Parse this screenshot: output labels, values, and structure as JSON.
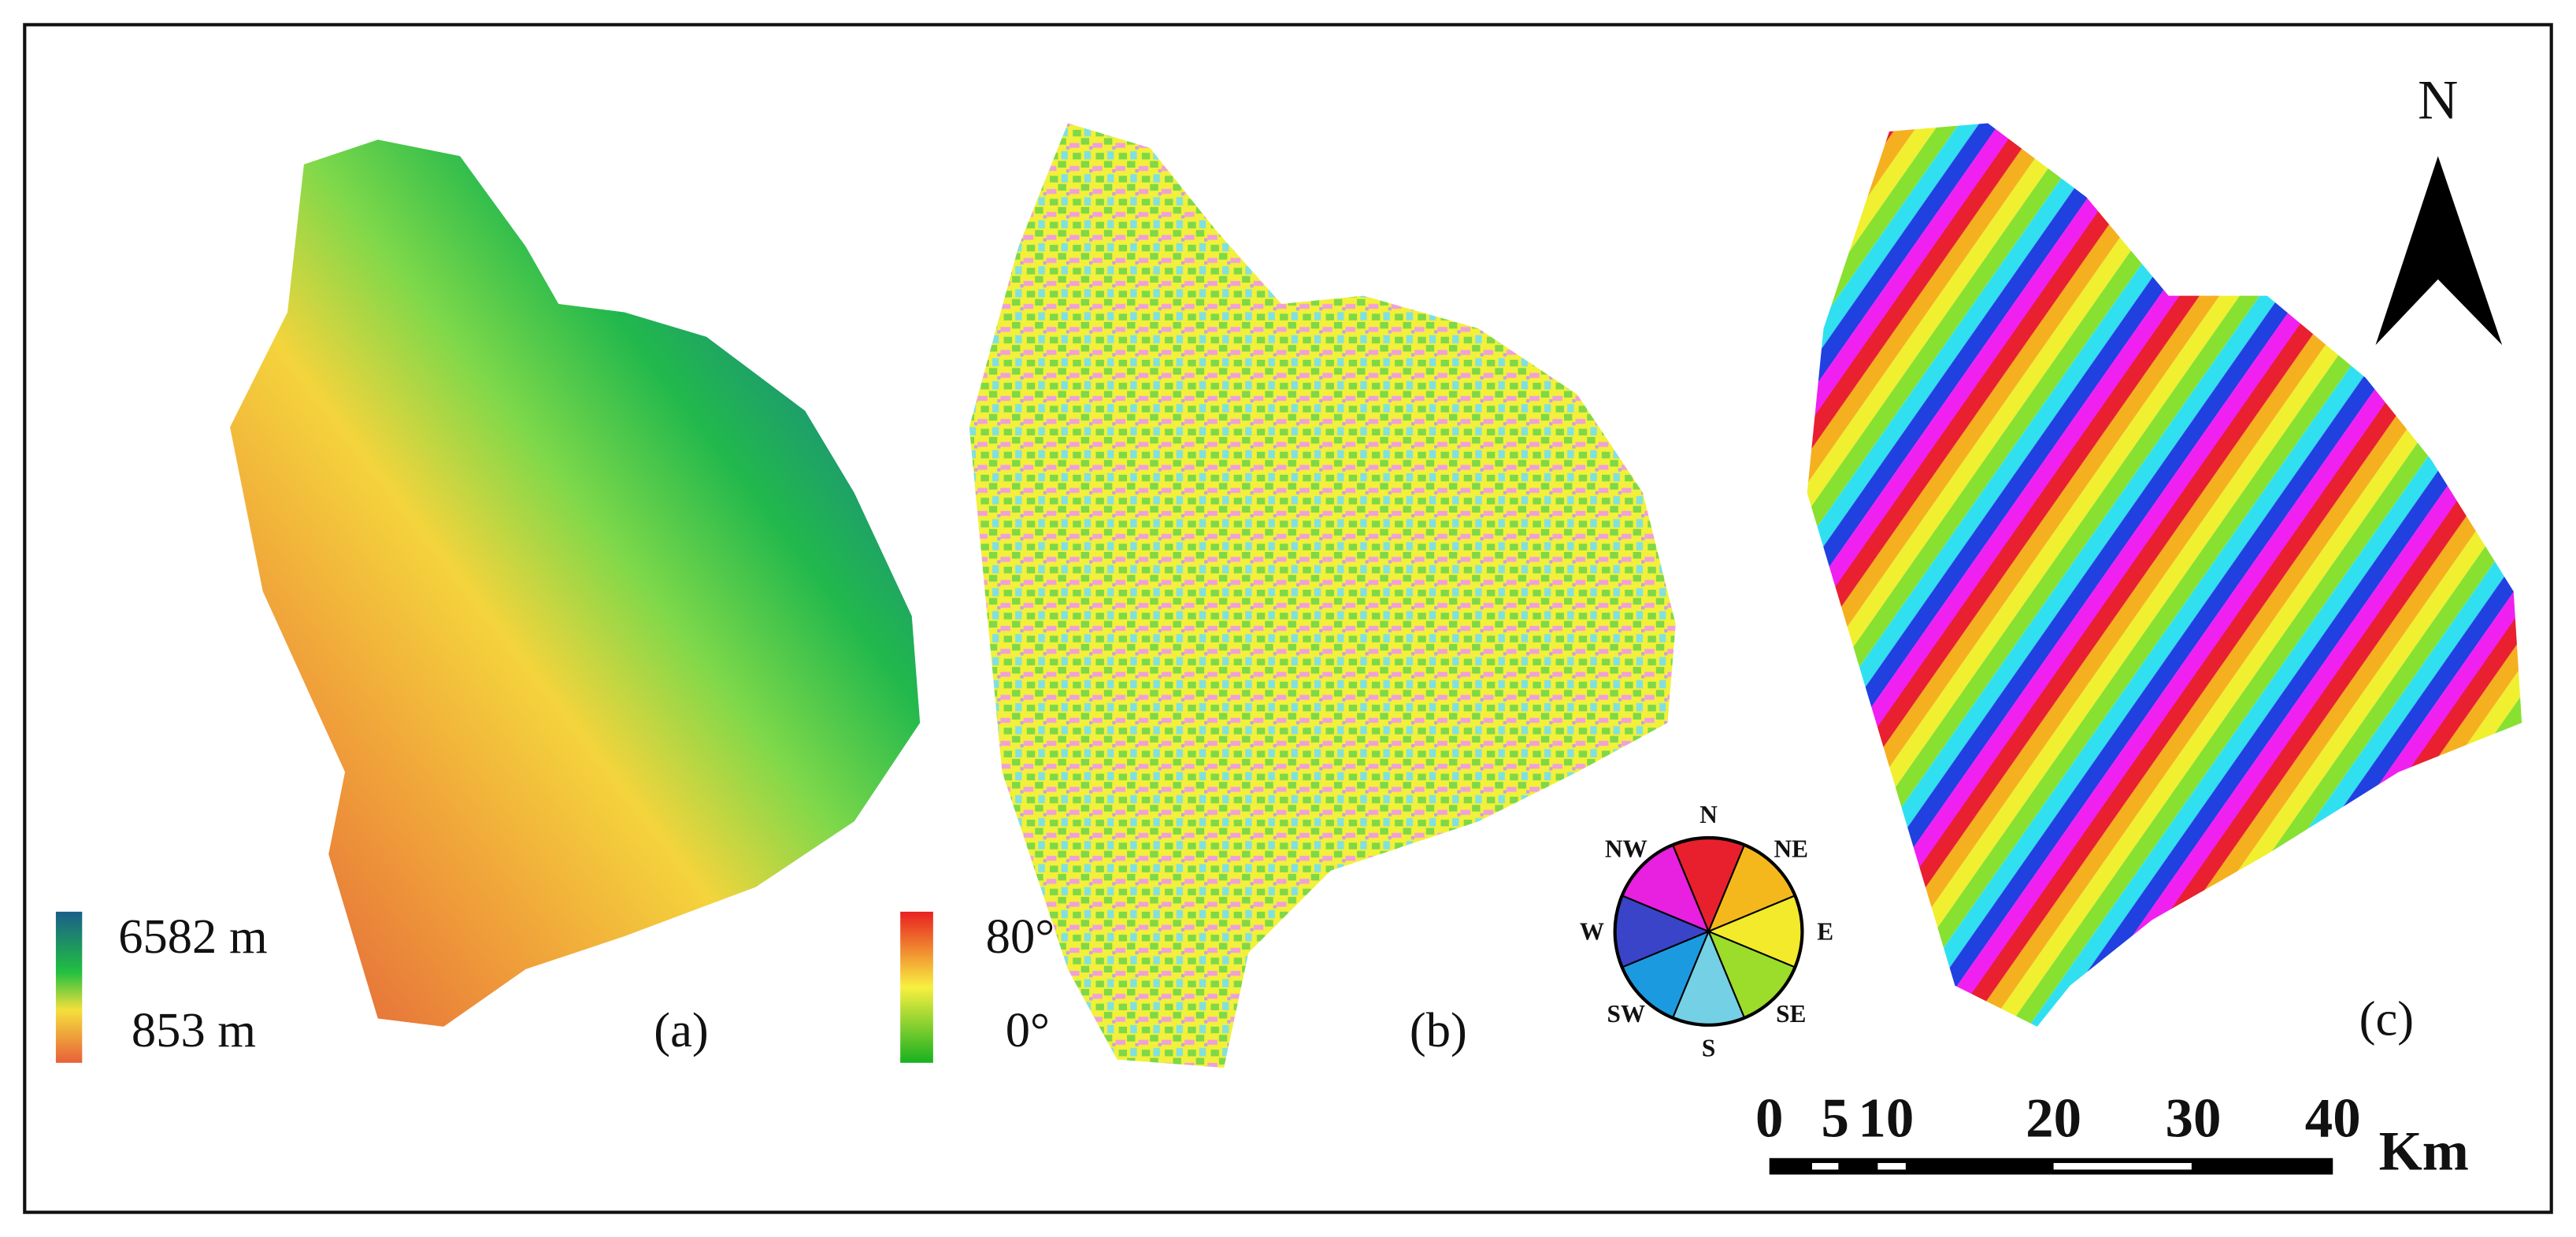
{
  "panels": [
    {
      "label": "(a)",
      "legend": {
        "max": "6582 m",
        "min": "853 m"
      }
    },
    {
      "label": "(b)",
      "legend": {
        "max": "80°",
        "min": "0°"
      }
    },
    {
      "label": "(c)",
      "aspect_legend": [
        "N",
        "NE",
        "E",
        "SE",
        "S",
        "SW",
        "W",
        "NW"
      ]
    }
  ],
  "north_arrow": "N",
  "scale_bar": {
    "ticks": [
      "0",
      "5",
      "10",
      "20",
      "30",
      "40"
    ],
    "unit": "Km"
  }
}
